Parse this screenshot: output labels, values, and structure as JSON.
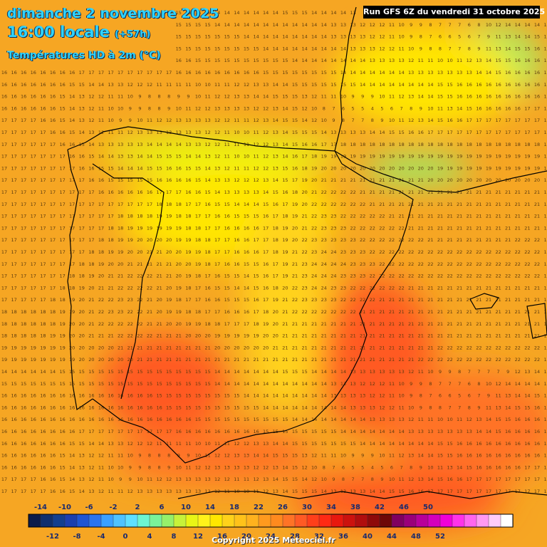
{
  "header": {
    "date": "dimanche 2 novembre 2025",
    "time": "16:00 locale",
    "offset": "(+57h)",
    "variable": "Températures HD à 2m (°C)",
    "run": "Run GFS 6Z du vendredi 31 octobre 2025"
  },
  "legend": {
    "top_labels": [
      "-14",
      "-10",
      "-6",
      "-2",
      "2",
      "6",
      "10",
      "14",
      "18",
      "22",
      "26",
      "30",
      "34",
      "38",
      "42",
      "46",
      "50"
    ],
    "bottom_labels": [
      "-12",
      "-8",
      "-4",
      "0",
      "4",
      "8",
      "12",
      "16",
      "20",
      "24",
      "28",
      "32",
      "36",
      "40",
      "44",
      "48",
      "52"
    ],
    "colors": [
      "#0c1c4a",
      "#0f2f6e",
      "#123f8f",
      "#1b3fae",
      "#1f55d2",
      "#2a74ee",
      "#3aa0ff",
      "#4fc2ff",
      "#5fe0ff",
      "#6cf5d2",
      "#7af29a",
      "#96f06a",
      "#c7f23a",
      "#e8f516",
      "#fff21a",
      "#ffe600",
      "#ffd21a",
      "#ffc21a",
      "#ffb21e",
      "#ff9a1e",
      "#ff8a1e",
      "#ff7326",
      "#ff5a24",
      "#ff3f1a",
      "#ff2a14",
      "#e8180e",
      "#cc120e",
      "#b00e0e",
      "#8e0a0a",
      "#6e0808",
      "#800060",
      "#9a007a",
      "#b8009a",
      "#d400bc",
      "#f000d8",
      "#ff33e8",
      "#ff66ee",
      "#ff99f2",
      "#ffccf8",
      "#ffffff"
    ]
  },
  "map": {
    "palette": {
      "sea": "#f6a623",
      "land_warm": "#ff8a1e",
      "land_cool": "#ffd21a",
      "cold_zone": "#c7f23a",
      "hot_zone": "#ff5a24",
      "coast": "#000000"
    },
    "grid_rows": [
      "14 14 14 14 14 14 15 15 15 15 15 15 15 15 15 15 15 15 15 15 15 15 14 14 14 14 14 14 14 15 15 15 14 14 14 14 13 13 13 13 13 13 12 11 10 9 9 8 7 7 7 7 9 12 13 14",
      "15 15 15 15 15 15 15 15 15 15 15 15 15 15 15 15 15 15 15 15 15 15 14 14 14 14 14 14 14 14 14 14 14 14 13 13 13 12 12 12 11 10 9 9 8 7 7 7 6 8 10 12 14 14 14 14",
      "16 16 16 16 16 16 16 16 16 16 16 16 16 16 16 16 15 15 15 15 15 15 15 15 15 14 14 14 14 14 14 14 14 14 13 13 13 13 12 12 11 10 9 8 7 6 6 5 6 7 9 11 13 14 14 15",
      "16 16 16 16 16 16 16 16 16 16 16 16 16 16 16 16 16 15 15 15 15 15 15 15 15 15 15 14 14 14 14 14 14 14 14 14 13 13 13 12 12 11 10 9 8 8 7 7 8 9 11 13 14 15 15 16",
      "16 16 16 16 16 16 16 16 16 16 16 16 16 16 16 16 16 16 16 16 15 15 15 15 15 15 15 15 15 15 14 14 14 14 14 14 14 14 13 13 13 13 12 11 11 10 10 11 12 13 14 15 15 16 16 16",
      "16 16 16 16 16 16 16 16 17 17 17 17 17 17 17 17 17 17 16 16 16 16 16 16 16 16 16 15 15 15 15 15 15 15 15 14 14 14 14 14 14 14 13 13 13 13 13 13 13 14 14 15 16 16 16 16",
      "16 16 16 16 16 16 16 15 15 14 14 13 13 12 12 12 11 11 11 11 10 10 11 11 12 12 13 13 14 14 15 15 15 15 15 15 15 14 14 14 14 14 14 14 14 15 15 16 16 16 16 16 16 16 16 16",
      "16 16 16 16 16 16 15 14 13 12 12 11 11 10 9 8 8 8 9 9 10 11 12 12 13 13 14 14 15 15 15 13 12 11 11 10 9 9 9 10 11 12 13 14 14 15 15 16 16 16 16 16 16 16 16 16",
      "16 16 16 16 16 16 15 14 13 12 11 10 10 9 9 8 8 9 10 11 12 12 13 13 13 13 12 12 13 14 15 12 10 8 7 6 5 5 4 5 6 7 8 9 10 11 13 14 15 16 16 16 16 16 17 17",
      "17 17 17 17 16 16 15 14 13 12 11 10 9 9 10 11 12 12 13 13 13 13 12 12 11 11 12 13 14 15 15 14 12 10 9 8 7 7 8 9 10 11 12 13 14 15 16 16 17 17 17 17 17 17 17 17",
      "17 17 17 17 17 16 16 15 14 13 12 11 11 12 13 13 13 13 13 13 13 12 12 11 10 10 11 12 13 14 15 15 15 14 13 13 13 13 14 14 15 15 16 16 17 17 17 17 17 17 17 17 17 17 17 17",
      "17 17 17 17 17 17 16 16 15 14 13 13 13 13 13 14 14 14 14 13 13 12 12 11 11 11 12 12 13 14 15 16 16 17 17 18 18 18 18 18 18 18 18 18 18 18 18 18 18 18 18 18 18 18 18 18",
      "17 17 17 17 17 17 17 16 16 15 14 14 13 13 14 14 15 15 15 14 14 13 12 11 10 10 11 12 13 14 16 17 18 19 19 19 19 19 19 19 19 19 19 19 19 19 19 19 19 19 19 19 19 19 19 19",
      "17 17 17 17 17 17 17 17 16 16 15 15 14 14 14 15 15 16 16 15 15 14 13 12 11 11 12 12 13 15 16 18 19 20 20 20 20 20 20 20 20 20 20 20 20 19 19 19 19 19 19 19 19 19 19 19",
      "17 17 17 17 17 17 17 17 17 16 16 15 15 15 15 15 16 16 16 16 15 14 13 13 12 12 12 13 14 15 17 19 20 21 21 21 21 21 21 21 21 21 21 21 20 20 20 20 20 20 20 20 20 20 20 20",
      "17 17 17 17 17 17 17 17 17 17 16 16 16 16 16 16 17 17 17 16 16 15 14 13 13 13 13 14 15 16 18 20 21 22 22 22 22 21 21 21 21 21 21 21 21 21 21 21 21 21 21 21 21 21 21 21",
      "17 17 17 17 17 17 17 17 17 17 17 17 17 17 17 17 18 18 18 17 17 16 15 15 14 14 14 15 16 17 19 20 22 22 22 22 22 22 21 21 21 21 21 21 21 21 21 21 21 21 21 21 21 21 21 21",
      "17 17 17 17 17 17 17 17 17 17 17 17 18 18 18 18 19 19 18 18 17 17 16 16 15 15 15 16 17 18 19 21 22 23 23 22 22 22 22 22 21 21 21 21 21 21 21 21 21 21 21 21 21 21 21 21",
      "17 17 17 17 17 17 17 17 17 17 17 18 18 19 19 19 19 19 19 18 18 17 17 16 16 16 16 17 18 19 20 21 22 23 23 23 22 22 22 22 22 22 21 21 21 21 21 21 21 21 21 21 21 21 21 21",
      "17 17 17 17 17 17 17 17 17 17 18 18 19 19 20 20 20 20 19 19 18 18 17 17 16 16 17 17 18 19 20 22 23 23 23 23 23 22 22 22 22 22 22 22 21 21 21 21 21 21 21 21 21 22 22 22",
      "17 17 17 17 17 17 17 17 17 18 18 19 19 20 20 21 21 20 20 19 19 18 17 17 16 16 16 17 18 19 21 22 23 24 24 23 23 23 22 22 22 22 22 22 22 22 22 22 22 22 22 22 22 22 22 22",
      "17 17 17 17 17 17 17 17 18 18 19 20 20 21 21 21 21 21 20 20 19 18 17 16 16 15 15 16 17 19 21 23 24 24 24 24 23 23 23 22 22 22 22 22 22 22 22 22 22 22 22 22 22 22 22 22",
      "17 17 17 17 17 17 17 18 18 19 20 21 21 22 22 22 21 21 20 19 18 17 16 15 15 14 15 16 17 19 21 23 24 24 24 23 23 23 22 22 22 22 22 22 22 22 22 22 22 22 22 22 22 22 22 22",
      "17 17 17 17 17 17 18 18 19 20 21 21 22 22 22 22 21 20 19 18 17 16 15 15 14 14 15 16 18 20 22 23 24 24 23 23 22 22 22 22 22 22 21 21 21 21 21 21 21 21 21 21 21 21 21 21",
      "17 17 17 17 17 18 18 19 20 21 22 22 23 23 22 21 20 19 18 17 17 16 16 15 15 15 16 17 19 21 22 23 23 23 23 22 22 22 22 21 21 21 21 21 21 21 21 21 21 21 21 21 21 21 21 21",
      "18 18 18 18 18 18 19 19 20 21 22 23 23 22 22 21 20 19 19 18 18 17 17 16 16 16 17 18 20 21 22 22 22 22 22 22 22 21 21 21 21 21 21 21 21 21 21 21 21 21 21 21 21 21 21 21",
      "18 18 18 18 18 18 19 20 20 21 22 22 22 22 22 21 21 20 20 19 19 18 18 17 17 17 18 19 20 21 21 21 21 21 21 21 21 21 21 21 21 21 21 21 21 21 21 21 21 21 21 21 21 21 21 21",
      "18 18 18 18 18 19 19 20 20 21 21 21 22 22 22 22 21 21 21 20 20 20 19 19 19 19 19 20 20 21 21 21 21 21 21 21 21 21 21 21 21 21 21 21 21 21 21 21 21 21 21 21 21 21 21 21",
      "19 19 19 19 19 19 19 20 20 20 20 20 21 21 21 21 21 21 21 21 21 21 20 20 20 20 20 20 21 21 21 21 21 21 21 21 21 21 21 21 21 21 21 21 21 22 22 22 22 22 22 22 22 22 22 22",
      "19 19 19 19 19 19 19 19 20 20 20 20 20 20 21 21 21 21 21 21 21 21 21 21 21 21 21 21 21 21 21 21 21 21 21 21 21 21 21 21 21 21 21 22 22 22 22 22 22 22 22 22 22 22 22 22"
    ]
  },
  "copyright": "Copyright 2025 Meteociel.fr"
}
